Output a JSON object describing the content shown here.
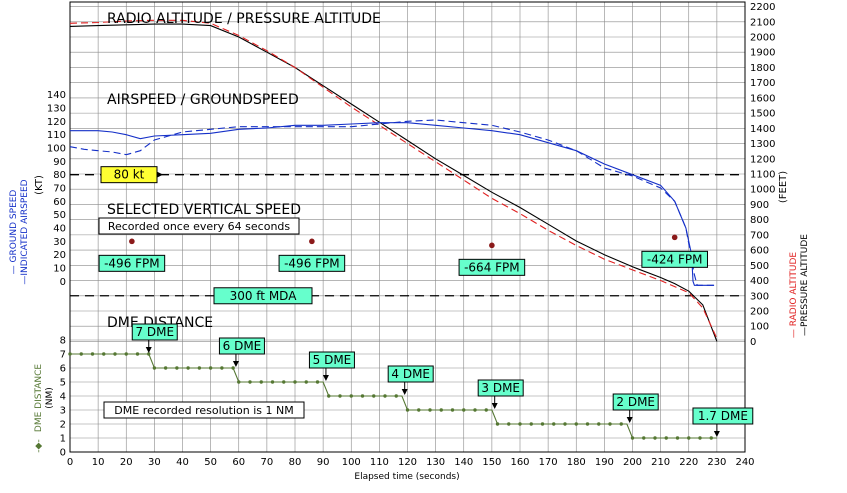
{
  "chart_data": {
    "type": "line",
    "x_axis": {
      "label": "Elapsed time (seconds)",
      "min": 0,
      "max": 240,
      "ticks": [
        0,
        10,
        20,
        30,
        40,
        50,
        60,
        70,
        80,
        90,
        100,
        110,
        120,
        130,
        140,
        150,
        160,
        170,
        180,
        190,
        200,
        210,
        220,
        230,
        240
      ],
      "grid": true
    },
    "left_axis": {
      "range": [
        -5,
        145
      ],
      "ticks": [
        0,
        10,
        20,
        30,
        40,
        50,
        60,
        70,
        80,
        90,
        100,
        110,
        120,
        130,
        140
      ],
      "unit": "(KT)",
      "legend_lines": [
        "— GROUND SPEED",
        "—INDICATED AIRSPEED"
      ]
    },
    "right_axis": {
      "range": [
        -30,
        2230
      ],
      "ticks": [
        0,
        100,
        200,
        300,
        400,
        500,
        600,
        700,
        800,
        900,
        1000,
        1100,
        1200,
        1300,
        1400,
        1500,
        1600,
        1700,
        1800,
        1900,
        2000,
        2100,
        2200
      ],
      "unit": "(FEET)",
      "legend_lines": [
        "— RADIO ALTITUDE",
        "—PRESSURE ALTITUDE"
      ]
    },
    "dme_axis": {
      "range": [
        0,
        8
      ],
      "ticks": [
        0,
        1,
        2,
        3,
        4,
        5,
        6,
        7,
        8
      ],
      "label": "DME DISTANCE",
      "unit": "(NM)",
      "legend_prefix": "-◆-"
    },
    "section_titles": {
      "altitude": "RADIO ALTITUDE / PRESSURE ALTITUDE",
      "airspeed": "AIRSPEED / GROUNDSPEED",
      "vs": "SELECTED VERTICAL SPEED",
      "dme": "DME DISTANCE"
    },
    "notes": {
      "vs_recorded": "Recorded once every 64 seconds",
      "dme_resolution": "DME recorded resolution is 1 NM"
    },
    "reference_lines": [
      {
        "label": "80 kt",
        "axis": "left",
        "value": 80,
        "label_style": "yellow"
      },
      {
        "label": "300 ft MDA",
        "axis": "right",
        "value": 300,
        "label_style": "green"
      }
    ],
    "series": [
      {
        "name": "PRESSURE ALTITUDE",
        "axis": "right",
        "color": "#000000",
        "dash": false,
        "points": [
          [
            0,
            2070
          ],
          [
            10,
            2075
          ],
          [
            20,
            2080
          ],
          [
            30,
            2085
          ],
          [
            40,
            2085
          ],
          [
            50,
            2075
          ],
          [
            60,
            2000
          ],
          [
            70,
            1900
          ],
          [
            80,
            1800
          ],
          [
            90,
            1680
          ],
          [
            100,
            1560
          ],
          [
            110,
            1440
          ],
          [
            120,
            1320
          ],
          [
            130,
            1200
          ],
          [
            140,
            1090
          ],
          [
            150,
            980
          ],
          [
            160,
            880
          ],
          [
            170,
            770
          ],
          [
            180,
            660
          ],
          [
            190,
            570
          ],
          [
            200,
            490
          ],
          [
            210,
            420
          ],
          [
            215,
            380
          ],
          [
            220,
            330
          ],
          [
            225,
            240
          ],
          [
            230,
            0
          ]
        ]
      },
      {
        "name": "RADIO ALTITUDE",
        "axis": "right",
        "color": "#e02020",
        "dash": true,
        "points": [
          [
            0,
            2090
          ],
          [
            10,
            2095
          ],
          [
            20,
            2105
          ],
          [
            30,
            2110
          ],
          [
            40,
            2110
          ],
          [
            50,
            2090
          ],
          [
            60,
            2010
          ],
          [
            70,
            1910
          ],
          [
            80,
            1800
          ],
          [
            90,
            1670
          ],
          [
            100,
            1540
          ],
          [
            110,
            1420
          ],
          [
            120,
            1300
          ],
          [
            130,
            1180
          ],
          [
            140,
            1060
          ],
          [
            150,
            940
          ],
          [
            160,
            840
          ],
          [
            170,
            730
          ],
          [
            180,
            630
          ],
          [
            190,
            540
          ],
          [
            200,
            470
          ],
          [
            210,
            400
          ],
          [
            215,
            360
          ],
          [
            220,
            320
          ],
          [
            225,
            220
          ],
          [
            230,
            20
          ]
        ]
      },
      {
        "name": "INDICATED AIRSPEED",
        "axis": "left",
        "color": "#1530c8",
        "dash": false,
        "points": [
          [
            0,
            113
          ],
          [
            10,
            113
          ],
          [
            15,
            112
          ],
          [
            20,
            110
          ],
          [
            25,
            107
          ],
          [
            30,
            109
          ],
          [
            40,
            110
          ],
          [
            50,
            111
          ],
          [
            60,
            114
          ],
          [
            70,
            115
          ],
          [
            80,
            117
          ],
          [
            90,
            117
          ],
          [
            100,
            118
          ],
          [
            110,
            119
          ],
          [
            120,
            119
          ],
          [
            130,
            117
          ],
          [
            140,
            115
          ],
          [
            150,
            113
          ],
          [
            160,
            110
          ],
          [
            170,
            104
          ],
          [
            180,
            98
          ],
          [
            190,
            88
          ],
          [
            200,
            80
          ],
          [
            210,
            72
          ],
          [
            215,
            60
          ],
          [
            219,
            40
          ],
          [
            221,
            20
          ],
          [
            221.5,
            0
          ],
          [
            222,
            -3
          ],
          [
            229,
            -3
          ]
        ]
      },
      {
        "name": "GROUND SPEED",
        "axis": "left",
        "color": "#1530c8",
        "dash": true,
        "points": [
          [
            0,
            101
          ],
          [
            5,
            99
          ],
          [
            10,
            98
          ],
          [
            15,
            97
          ],
          [
            20,
            95
          ],
          [
            25,
            98
          ],
          [
            30,
            106
          ],
          [
            40,
            112
          ],
          [
            50,
            114
          ],
          [
            60,
            116
          ],
          [
            70,
            116
          ],
          [
            80,
            116
          ],
          [
            90,
            116
          ],
          [
            100,
            116
          ],
          [
            110,
            118
          ],
          [
            120,
            120
          ],
          [
            130,
            121
          ],
          [
            140,
            119
          ],
          [
            150,
            117
          ],
          [
            160,
            112
          ],
          [
            170,
            106
          ],
          [
            180,
            98
          ],
          [
            190,
            85
          ],
          [
            200,
            79
          ],
          [
            210,
            70
          ],
          [
            215,
            60
          ],
          [
            219,
            40
          ],
          [
            222,
            5
          ],
          [
            223,
            -3
          ],
          [
            229,
            -3
          ]
        ]
      }
    ],
    "selected_vertical_speed": [
      {
        "t": 22,
        "value": 30,
        "label": "-496 FPM",
        "label_x": 22
      },
      {
        "t": 86,
        "value": 30,
        "label": "-496 FPM",
        "label_x": 86
      },
      {
        "t": 150,
        "value": 27,
        "label": "-664 FPM",
        "label_x": 150
      },
      {
        "t": 215,
        "value": 33,
        "label": "-424 FPM",
        "label_x": 215
      }
    ],
    "dme_series": {
      "name": "DME DISTANCE",
      "color": "#557733",
      "points": [
        [
          0,
          7
        ],
        [
          28,
          7
        ],
        [
          30,
          6
        ],
        [
          58,
          6
        ],
        [
          60,
          5
        ],
        [
          90,
          5
        ],
        [
          92,
          4
        ],
        [
          118,
          4
        ],
        [
          120,
          3
        ],
        [
          150,
          3
        ],
        [
          152,
          2
        ],
        [
          198,
          2
        ],
        [
          200,
          1
        ],
        [
          230,
          1
        ]
      ]
    },
    "dme_labels": [
      {
        "label": "7 DME",
        "t": 28,
        "value": 7
      },
      {
        "label": "6 DME",
        "t": 59,
        "value": 6
      },
      {
        "label": "5 DME",
        "t": 91,
        "value": 5
      },
      {
        "label": "4 DME",
        "t": 119,
        "value": 4
      },
      {
        "label": "3 DME",
        "t": 151,
        "value": 3
      },
      {
        "label": "2 DME",
        "t": 199,
        "value": 2
      },
      {
        "label": "1.7 DME",
        "t": 230,
        "value": 1
      }
    ]
  }
}
